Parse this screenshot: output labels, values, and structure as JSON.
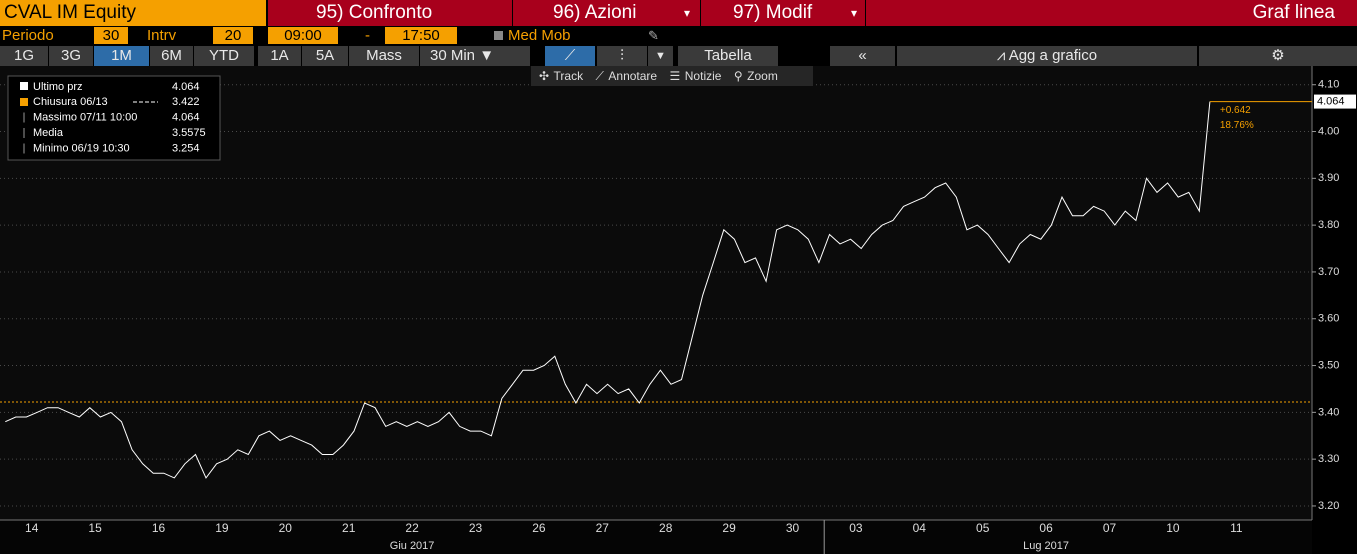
{
  "header": {
    "security": "CVAL IM Equity",
    "menu": [
      "95) Confronto",
      "96) Azioni",
      "97) Modif"
    ],
    "view": "Graf linea"
  },
  "settings": {
    "period_label": "Periodo",
    "period": "30",
    "interval_label": "Intrv",
    "interval": "20",
    "start": "09:00",
    "separator": "-",
    "end": "17:50",
    "moving_avg": "Med Mob"
  },
  "toolbar": {
    "ranges": [
      "1G",
      "3G",
      "1M",
      "6M",
      "YTD",
      "1A",
      "5A",
      "Mass"
    ],
    "bar_size": "30 Min",
    "table": "Tabella",
    "add": "Agg a grafico"
  },
  "chart_tools": [
    "Track",
    "Annotare",
    "Notizie",
    "Zoom"
  ],
  "chart_data": {
    "type": "line",
    "categories": [
      "14",
      "15",
      "16",
      "19",
      "20",
      "21",
      "22",
      "23",
      "26",
      "27",
      "28",
      "29",
      "30",
      "03",
      "04",
      "05",
      "06",
      "07",
      "10",
      "11"
    ],
    "x_groups": [
      "Giu 2017",
      "Lug 2017"
    ],
    "series": [
      {
        "name": "Ultimo prz",
        "color": "#ffffff",
        "last_value": 4.064,
        "values": [
          [
            3.38,
            3.39,
            3.39,
            3.4,
            3.41,
            3.41
          ],
          [
            3.4,
            3.39,
            3.41,
            3.39,
            3.4,
            3.38
          ],
          [
            3.32,
            3.29,
            3.27,
            3.27,
            3.26,
            3.29
          ],
          [
            3.31,
            3.26,
            3.29,
            3.3,
            3.32,
            3.31
          ],
          [
            3.35,
            3.36,
            3.34,
            3.35,
            3.34,
            3.33
          ],
          [
            3.31,
            3.31,
            3.33,
            3.36,
            3.42,
            3.41
          ],
          [
            3.37,
            3.38,
            3.37,
            3.38,
            3.37,
            3.38
          ],
          [
            3.4,
            3.37,
            3.36,
            3.36,
            3.35,
            3.43
          ],
          [
            3.46,
            3.49,
            3.49,
            3.5,
            3.52,
            3.46
          ],
          [
            3.42,
            3.46,
            3.44,
            3.46,
            3.44,
            3.45
          ],
          [
            3.42,
            3.46,
            3.49,
            3.46,
            3.47,
            3.56
          ],
          [
            3.65,
            3.72,
            3.79,
            3.77,
            3.72,
            3.73
          ],
          [
            3.68,
            3.79,
            3.8,
            3.79,
            3.77,
            3.72
          ],
          [
            3.78,
            3.76,
            3.77,
            3.75,
            3.78,
            3.8
          ],
          [
            3.81,
            3.84,
            3.85,
            3.86,
            3.88,
            3.89
          ],
          [
            3.86,
            3.79,
            3.8,
            3.78,
            3.75,
            3.72
          ],
          [
            3.76,
            3.78,
            3.77,
            3.8,
            3.86,
            3.82
          ],
          [
            3.82,
            3.84,
            3.83,
            3.8,
            3.83,
            3.81
          ],
          [
            3.9,
            3.87,
            3.89,
            3.86,
            3.87,
            3.83
          ],
          [
            4.064
          ]
        ]
      }
    ],
    "stats": [
      {
        "label": "Chiusura 06/13",
        "value": 3.422,
        "color": "#f5a000"
      },
      {
        "label": "Massimo 07/11 10:00",
        "value": 4.064
      },
      {
        "label": "Media",
        "value": 3.5575
      },
      {
        "label": "Minimo 06/19 10:30",
        "value": 3.254
      }
    ],
    "change": "+0.642",
    "change_pct": "18.76%",
    "annotation_color": "#f5a000",
    "ylim": [
      3.17,
      4.14
    ],
    "yticks": [
      {
        "value": 3.2,
        "label": "3.20"
      },
      {
        "value": 3.3,
        "label": "3.30"
      },
      {
        "value": 3.4,
        "label": "3.40"
      },
      {
        "value": 3.5,
        "label": "3.50"
      },
      {
        "value": 3.6,
        "label": "3.60"
      },
      {
        "value": 3.7,
        "label": "3.70"
      },
      {
        "value": 3.8,
        "label": "3.80"
      },
      {
        "value": 3.9,
        "label": "3.90"
      },
      {
        "value": 4,
        "label": "4.00"
      },
      {
        "value": 4.1,
        "label": "4.10"
      }
    ],
    "grid": true
  }
}
